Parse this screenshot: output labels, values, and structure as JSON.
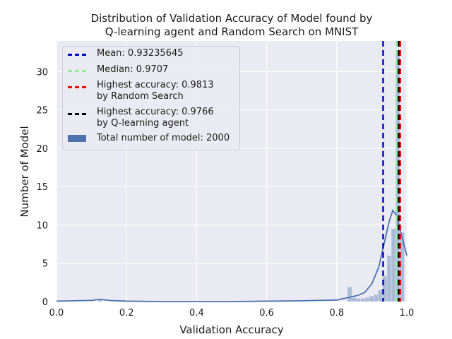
{
  "chart_data": {
    "type": "bar",
    "title_lines": [
      "Distribution of Validation Accuracy of Model found by",
      "Q-learning agent and Random Search on MNIST"
    ],
    "xlabel": "Validation Accuracy",
    "ylabel": "Number of Model",
    "xlim": [
      0.0,
      1.0
    ],
    "ylim": [
      0,
      34
    ],
    "xticks": [
      "0.0",
      "0.2",
      "0.4",
      "0.6",
      "0.8",
      "1.0"
    ],
    "yticks": [
      "0",
      "5",
      "10",
      "15",
      "20",
      "25",
      "30"
    ],
    "grid": true,
    "legend_position": "top-left",
    "histogram": {
      "bin_width": 0.0125,
      "bins": [
        {
          "x": 0.125,
          "value": 0.2
        },
        {
          "x": 0.8375,
          "value": 1.9
        },
        {
          "x": 0.85,
          "value": 0.5
        },
        {
          "x": 0.8625,
          "value": 0.4
        },
        {
          "x": 0.875,
          "value": 0.4
        },
        {
          "x": 0.8875,
          "value": 0.5
        },
        {
          "x": 0.9,
          "value": 0.7
        },
        {
          "x": 0.9125,
          "value": 0.9
        },
        {
          "x": 0.925,
          "value": 1.5
        },
        {
          "x": 0.9375,
          "value": 3.3
        },
        {
          "x": 0.95,
          "value": 6.0
        },
        {
          "x": 0.9625,
          "value": 9.5
        },
        {
          "x": 0.975,
          "value": 32.4
        },
        {
          "x": 0.9875,
          "value": 9.0
        }
      ]
    },
    "kde": {
      "x": [
        0.0,
        0.05,
        0.1,
        0.125,
        0.15,
        0.2,
        0.3,
        0.4,
        0.5,
        0.6,
        0.7,
        0.75,
        0.8,
        0.83,
        0.86,
        0.88,
        0.9,
        0.92,
        0.94,
        0.95,
        0.96,
        0.97,
        0.98,
        0.99,
        1.0
      ],
      "y": [
        0.05,
        0.1,
        0.15,
        0.3,
        0.15,
        0.05,
        0.0,
        0.0,
        0.0,
        0.05,
        0.1,
        0.15,
        0.2,
        0.5,
        0.8,
        1.2,
        2.3,
        4.5,
        8.5,
        10.5,
        11.9,
        11.3,
        9.5,
        7.8,
        6.0
      ]
    },
    "vlines": [
      {
        "label": "Mean: 0.93235645",
        "x": 0.93235645,
        "color": "#0000cc"
      },
      {
        "label": "Median: 0.9707",
        "x": 0.9707,
        "color": "#90ee90"
      },
      {
        "label": "Highest accuracy: 0.9813\nby Random Search",
        "x": 0.9813,
        "color": "#ff0000"
      },
      {
        "label": "Highest accuracy: 0.9766\nby Q-learning agent",
        "x": 0.9766,
        "color": "#000000"
      }
    ],
    "legend": [
      {
        "kind": "line",
        "color": "#0000cc",
        "lines": [
          "Mean: 0.93235645"
        ]
      },
      {
        "kind": "line",
        "color": "#90ee90",
        "lines": [
          "Median: 0.9707"
        ]
      },
      {
        "kind": "line",
        "color": "#ff0000",
        "lines": [
          "Highest accuracy: 0.9813",
          "by Random Search"
        ]
      },
      {
        "kind": "line",
        "color": "#000000",
        "lines": [
          "Highest accuracy: 0.9766",
          "by Q-learning agent"
        ]
      },
      {
        "kind": "patch",
        "color": "#4c72b0",
        "lines": [
          "Total number of model: 2000"
        ]
      }
    ],
    "colors": {
      "background": "#eaeaf2",
      "grid": "#ffffff",
      "bars": "#4c72b0",
      "kde": "#4c72b0"
    }
  }
}
